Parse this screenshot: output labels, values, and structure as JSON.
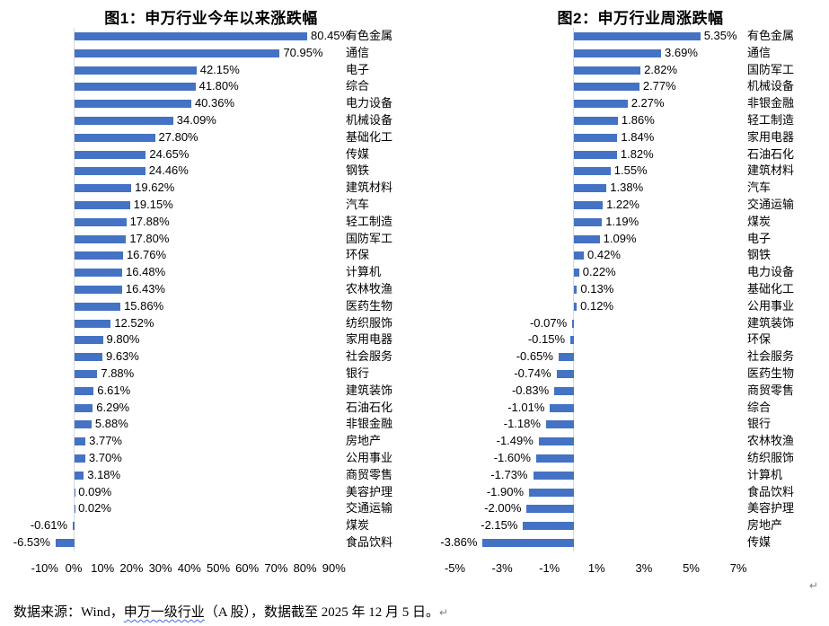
{
  "page": {
    "background": "#ffffff",
    "source_note": {
      "prefix": "数据来源：Wind，",
      "underlined_term": "申万一级行业",
      "suffix": "（A 股），数据截至 2025 年 12 月 5 日。",
      "paragraph_mark": "↵"
    },
    "chart_area_paragraph_mark": "↵"
  },
  "colors": {
    "bar": "#4472C4",
    "axis_line": "#D9D9D9",
    "text": "#000000",
    "underline_squiggle": "#4169E1",
    "paragraph_mark": "#808080"
  },
  "chart_data": [
    {
      "type": "bar",
      "orientation": "horizontal",
      "title": "图1：申万行业今年以来涨跌幅",
      "categories": [
        "有色金属",
        "通信",
        "电子",
        "综合",
        "电力设备",
        "机械设备",
        "基础化工",
        "传媒",
        "钢铁",
        "建筑材料",
        "汽车",
        "轻工制造",
        "国防军工",
        "环保",
        "计算机",
        "农林牧渔",
        "医药生物",
        "纺织服饰",
        "家用电器",
        "社会服务",
        "银行",
        "建筑装饰",
        "石油石化",
        "非银金融",
        "房地产",
        "公用事业",
        "商贸零售",
        "美容护理",
        "交通运输",
        "煤炭",
        "食品饮料"
      ],
      "values": [
        80.45,
        70.95,
        42.15,
        41.8,
        40.36,
        34.09,
        27.8,
        24.65,
        24.46,
        19.62,
        19.15,
        17.88,
        17.8,
        16.76,
        16.48,
        16.43,
        15.86,
        12.52,
        9.8,
        9.63,
        7.88,
        6.61,
        6.29,
        5.88,
        3.77,
        3.7,
        3.18,
        0.09,
        0.02,
        -0.61,
        -6.53
      ],
      "value_labels": [
        "80.45%",
        "70.95%",
        "42.15%",
        "41.80%",
        "40.36%",
        "34.09%",
        "27.80%",
        "24.65%",
        "24.46%",
        "19.62%",
        "19.15%",
        "17.88%",
        "17.80%",
        "16.76%",
        "16.48%",
        "16.43%",
        "15.86%",
        "12.52%",
        "9.80%",
        "9.63%",
        "7.88%",
        "6.61%",
        "6.29%",
        "5.88%",
        "3.77%",
        "3.70%",
        "3.18%",
        "0.09%",
        "0.02%",
        "-0.61%",
        "-6.53%"
      ],
      "xlim": [
        -10,
        90
      ],
      "xtick_values": [
        -10,
        0,
        10,
        20,
        30,
        40,
        50,
        60,
        70,
        80,
        90
      ],
      "xtick_labels": [
        "-10%",
        "0%",
        "10%",
        "20%",
        "30%",
        "40%",
        "50%",
        "60%",
        "70%",
        "80%",
        "90%"
      ],
      "bar_color": "#4472C4",
      "value_label_position": "outside-end",
      "category_label_position": "right-of-plot",
      "grid": false,
      "legend": "none"
    },
    {
      "type": "bar",
      "orientation": "horizontal",
      "title": "图2：申万行业周涨跌幅",
      "categories": [
        "有色金属",
        "通信",
        "国防军工",
        "机械设备",
        "非银金融",
        "轻工制造",
        "家用电器",
        "石油石化",
        "建筑材料",
        "汽车",
        "交通运输",
        "煤炭",
        "电子",
        "钢铁",
        "电力设备",
        "基础化工",
        "公用事业",
        "建筑装饰",
        "环保",
        "社会服务",
        "医药生物",
        "商贸零售",
        "综合",
        "银行",
        "农林牧渔",
        "纺织服饰",
        "计算机",
        "食品饮料",
        "美容护理",
        "房地产",
        "传媒"
      ],
      "values": [
        5.35,
        3.69,
        2.82,
        2.77,
        2.27,
        1.86,
        1.84,
        1.82,
        1.55,
        1.38,
        1.22,
        1.19,
        1.09,
        0.42,
        0.22,
        0.13,
        0.12,
        -0.07,
        -0.15,
        -0.65,
        -0.74,
        -0.83,
        -1.01,
        -1.18,
        -1.49,
        -1.6,
        -1.73,
        -1.9,
        -2.0,
        -2.15,
        -3.86
      ],
      "value_labels": [
        "5.35%",
        "3.69%",
        "2.82%",
        "2.77%",
        "2.27%",
        "1.86%",
        "1.84%",
        "1.82%",
        "1.55%",
        "1.38%",
        "1.22%",
        "1.19%",
        "1.09%",
        "0.42%",
        "0.22%",
        "0.13%",
        "0.12%",
        "-0.07%",
        "-0.15%",
        "-0.65%",
        "-0.74%",
        "-0.83%",
        "-1.01%",
        "-1.18%",
        "-1.49%",
        "-1.60%",
        "-1.73%",
        "-1.90%",
        "-2.00%",
        "-2.15%",
        "-3.86%"
      ],
      "xlim": [
        -5,
        7
      ],
      "xtick_values": [
        -5,
        -3,
        -1,
        1,
        3,
        5,
        7
      ],
      "xtick_labels": [
        "-5%",
        "-3%",
        "-1%",
        "1%",
        "3%",
        "5%",
        "7%"
      ],
      "bar_color": "#4472C4",
      "value_label_position": "outside-end",
      "category_label_position": "right-of-plot",
      "grid": false,
      "legend": "none"
    }
  ]
}
